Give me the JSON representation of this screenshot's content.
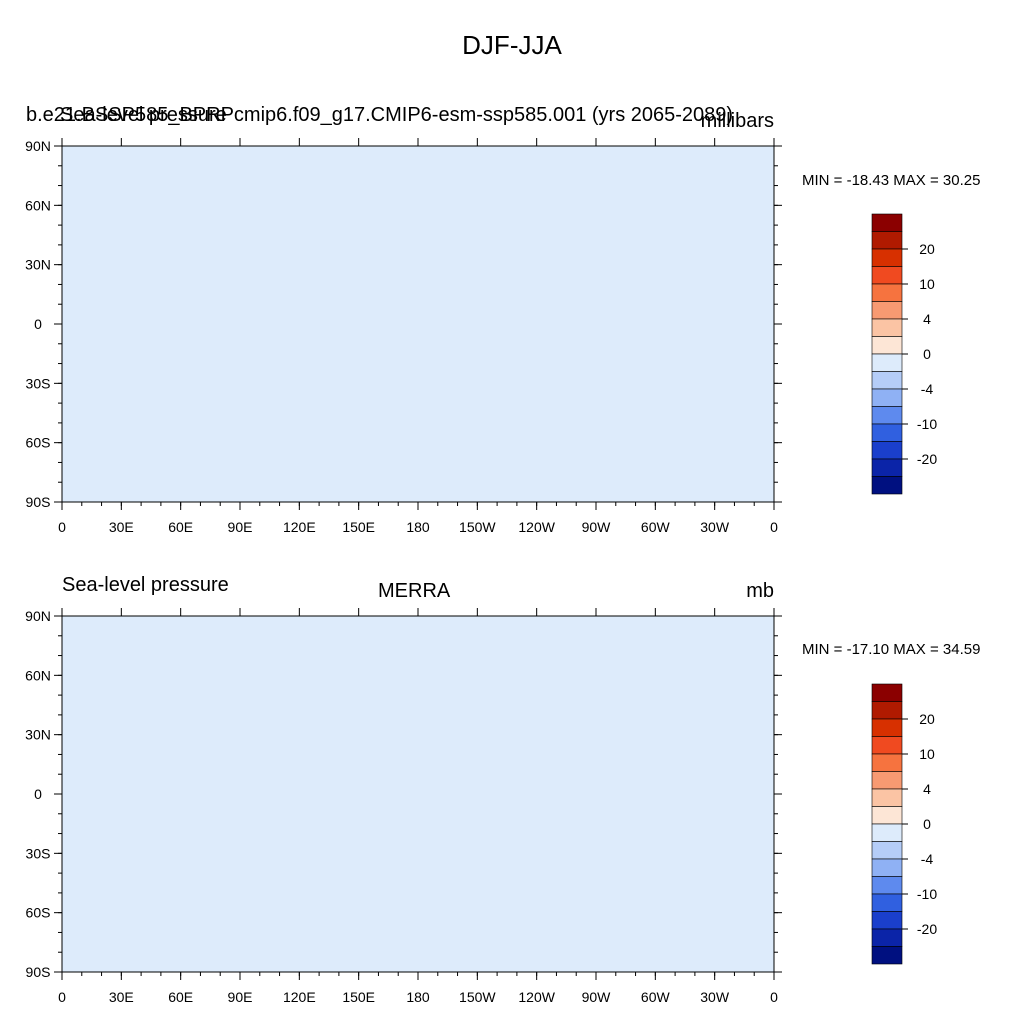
{
  "figure": {
    "title": "DJF-JJA"
  },
  "axes": {
    "lon_labels": [
      "0",
      "30E",
      "60E",
      "90E",
      "120E",
      "150E",
      "180",
      "150W",
      "120W",
      "90W",
      "60W",
      "30W",
      "0"
    ],
    "lat_labels": [
      "90N",
      "60N",
      "30N",
      "0",
      "30S",
      "60S",
      "90S"
    ]
  },
  "panels": [
    {
      "left_label": "b.e21.BSSP585_BPRPcmip6.f09_g17.CMIP6-esm-ssp585.001 (yrs 2065-2089)",
      "overlap_label": "Sea-level pressure",
      "center_label": "",
      "right_label": "millibars",
      "min_max": "MIN = -18.43 MAX =  30.25"
    },
    {
      "left_label": "Sea-level pressure",
      "overlap_label": "",
      "center_label": "MERRA",
      "right_label": "mb",
      "min_max": "MIN = -17.10 MAX =  34.59"
    }
  ],
  "colorbar": {
    "colors": [
      "#8b0000",
      "#b01a00",
      "#d73000",
      "#f04a20",
      "#f6733f",
      "#f79a72",
      "#fbc4a4",
      "#fde6d6",
      "#ddebfb",
      "#b5cdf8",
      "#8fb1f4",
      "#5e8aee",
      "#3060e0",
      "#1a3fcc",
      "#0b24a8",
      "#001080"
    ],
    "tick_labels": [
      "20",
      "10",
      "4",
      "0",
      "-4",
      "-10",
      "-20"
    ]
  },
  "chart_data": {
    "type": "heatmap",
    "title": "DJF-JJA",
    "variable": "Sea-level pressure",
    "xlabel": "",
    "ylabel": "",
    "x_ticks": [
      "0",
      "30E",
      "60E",
      "90E",
      "120E",
      "150E",
      "180",
      "150W",
      "120W",
      "90W",
      "60W",
      "30W",
      "0"
    ],
    "y_ticks": [
      "90N",
      "60N",
      "30N",
      "0",
      "30S",
      "60S",
      "90S"
    ],
    "colorbar_ticks": [
      20,
      10,
      4,
      0,
      -4,
      -10,
      -20
    ],
    "panels": [
      {
        "name": "b.e21.BSSP585_BPRPcmip6.f09_g17.CMIP6-esm-ssp585.001 (yrs 2065-2089)",
        "units": "millibars",
        "min": -18.43,
        "max": 30.25
      },
      {
        "name": "MERRA",
        "units": "mb",
        "min": -17.1,
        "max": 34.59
      }
    ]
  }
}
